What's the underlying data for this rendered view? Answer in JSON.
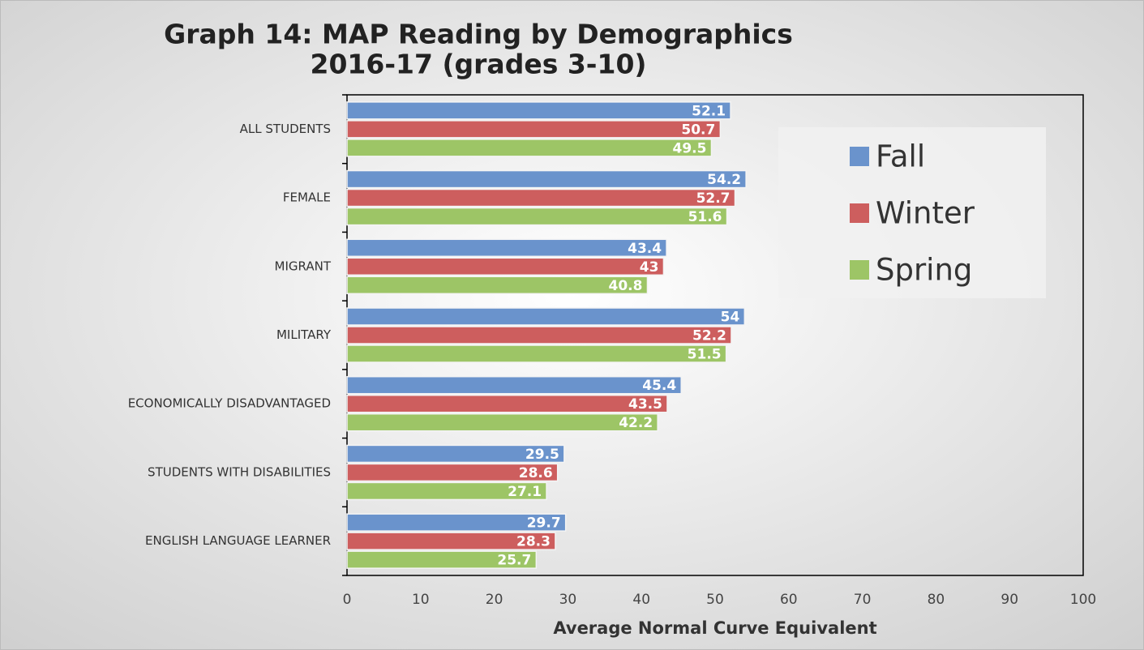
{
  "chart_data": {
    "type": "barh",
    "title": [
      "Graph 14: MAP Reading by Demographics",
      "2016-17 (grades 3-10)"
    ],
    "xlabel": "Average Normal Curve Equivalent",
    "categories": [
      "ALL STUDENTS",
      "FEMALE",
      "MIGRANT",
      "MILITARY",
      "ECONOMICALLY DISADVANTAGED",
      "STUDENTS WITH DISABILITIES",
      "ENGLISH LANGUAGE LEARNER"
    ],
    "series": [
      {
        "name": "Fall",
        "color": "#6a93cc",
        "values": [
          52.1,
          54.2,
          43.4,
          54,
          45.4,
          29.5,
          29.7
        ]
      },
      {
        "name": "Winter",
        "color": "#cd5e5e",
        "values": [
          50.7,
          52.7,
          43,
          52.2,
          43.5,
          28.6,
          28.3
        ]
      },
      {
        "name": "Spring",
        "color": "#9dc566",
        "values": [
          49.5,
          51.6,
          40.8,
          51.5,
          42.2,
          27.1,
          25.7
        ]
      }
    ],
    "xlim": [
      0,
      100
    ],
    "xticks": [
      0,
      10,
      20,
      30,
      40,
      50,
      60,
      70,
      80,
      90,
      100
    ],
    "legend": "upper right"
  }
}
